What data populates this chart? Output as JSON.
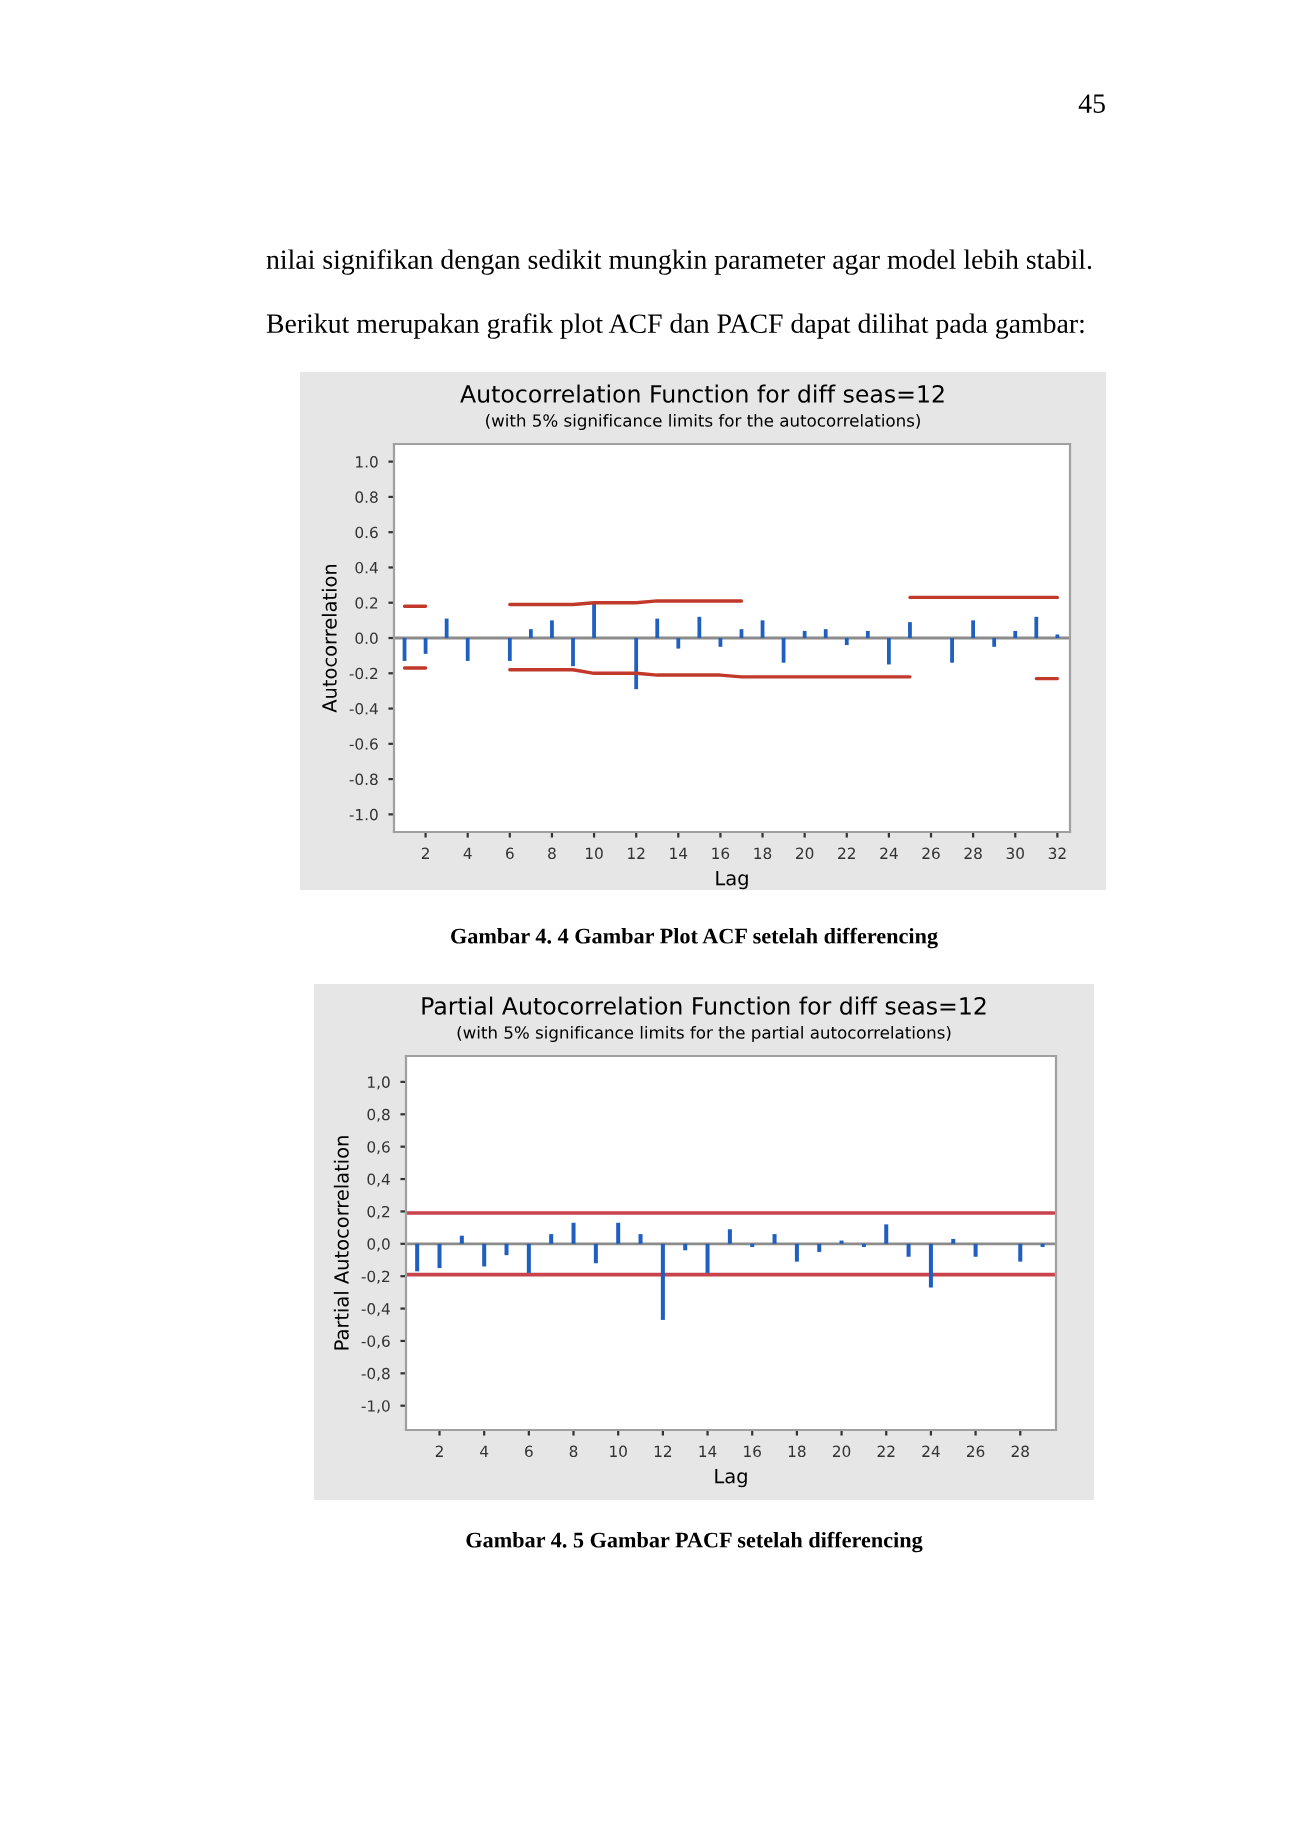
{
  "chart_data": [
    {
      "type": "bar",
      "title": "Autocorrelation Function for diff seas=12",
      "subtitle": "(with 5% significance limits for the autocorrelations)",
      "xlabel": "Lag",
      "ylabel": "Autocorrelation",
      "annotations": [
        "45",
        "nilai signifikan dengan sedikit mungkin parameter agar model lebih stabil.",
        "Berikut merupakan grafik plot ACF dan PACF dapat dilihat pada gambar:",
        "Gambar 4. 4 Gambar Plot ACF setelah differencing"
      ],
      "x": [
        1,
        2,
        3,
        4,
        5,
        6,
        7,
        8,
        9,
        10,
        11,
        12,
        13,
        14,
        15,
        16,
        17,
        18,
        19,
        20,
        21,
        22,
        23,
        24,
        25,
        26,
        27,
        28,
        29,
        30,
        31,
        32
      ],
      "series": [
        {
          "color": "#1f5fbf",
          "values": [
            -0.13,
            -0.09,
            0.11,
            -0.13,
            0,
            -0.13,
            0.05,
            0.1,
            -0.16,
            0.2,
            0,
            -0.29,
            0.11,
            -0.06,
            0.12,
            -0.05,
            0.05,
            0.1,
            -0.14,
            0.04,
            0.05,
            -0.04,
            0.04,
            -0.15,
            0.09,
            0,
            -0.14,
            0.1,
            -0.05,
            0.04,
            0.12,
            0.02
          ]
        },
        {
          "type": "line",
          "color": "#c0392b",
          "values": [
            0.18,
            0.18,
            null,
            null,
            null,
            0.19,
            0.19,
            0.19,
            0.19,
            0.2,
            0.2,
            0.2,
            0.21,
            0.21,
            0.21,
            0.21,
            0.21,
            null,
            null,
            null,
            null,
            null,
            null,
            null,
            0.23,
            0.23,
            0.23,
            0.23,
            0.23,
            0.23,
            0.23,
            0.23
          ]
        },
        {
          "type": "line",
          "color": "#c0392b",
          "values": [
            -0.17,
            -0.17,
            null,
            null,
            null,
            -0.18,
            -0.18,
            -0.18,
            -0.18,
            -0.2,
            -0.2,
            -0.2,
            -0.21,
            -0.21,
            -0.21,
            -0.21,
            -0.22,
            -0.22,
            -0.22,
            -0.22,
            -0.22,
            -0.22,
            -0.22,
            -0.22,
            -0.22,
            null,
            null,
            null,
            null,
            null,
            -0.23,
            -0.23
          ]
        }
      ],
      "ref_lines": [
        {
          "axis": "y",
          "value": 0,
          "label": null,
          "color": "#8c8c8c"
        }
      ],
      "xlim": [
        0.5,
        32.6
      ],
      "xticks": [
        2,
        4,
        6,
        8,
        10,
        12,
        14,
        16,
        18,
        20,
        22,
        24,
        26,
        28,
        30,
        32
      ],
      "ylim": [
        -1.1,
        1.1
      ],
      "yticks": [
        {
          "value": -1.0,
          "label": "-1.0"
        },
        -0.8,
        -0.6,
        -0.4,
        -0.2,
        {
          "value": 0.0,
          "label": "0.0"
        },
        0.2,
        0.4,
        0.6,
        0.8,
        {
          "value": 1.0,
          "label": "1.0"
        }
      ],
      "grid": false,
      "legend": false
    },
    {
      "type": "bar",
      "title": "Partial Autocorrelation Function for diff seas=12",
      "subtitle": "(with 5% significance limits for the partial autocorrelations)",
      "xlabel": "Lag",
      "ylabel": "Partial Autocorrelation",
      "annotations": [
        "Gambar 4. 5 Gambar PACF setelah differencing"
      ],
      "x": [
        1,
        2,
        3,
        4,
        5,
        6,
        7,
        8,
        9,
        10,
        11,
        12,
        13,
        14,
        15,
        16,
        17,
        18,
        19,
        20,
        21,
        22,
        23,
        24,
        25,
        26,
        27,
        28,
        29
      ],
      "series": [
        {
          "color": "#1f5fbf",
          "values": [
            -0.17,
            -0.15,
            0.05,
            -0.14,
            -0.07,
            -0.18,
            0.06,
            0.13,
            -0.12,
            0.13,
            0.06,
            -0.47,
            -0.04,
            -0.18,
            0.09,
            -0.02,
            0.06,
            -0.11,
            -0.05,
            0.02,
            -0.02,
            0.12,
            -0.08,
            -0.27,
            0.03,
            -0.08,
            0,
            -0.11,
            -0.02
          ]
        }
      ],
      "ref_lines": [
        {
          "axis": "y",
          "value": 0,
          "label": null,
          "color": "#8c8c8c"
        },
        {
          "axis": "y",
          "value": 0.19,
          "label": null,
          "color": "#c8434b"
        },
        {
          "axis": "y",
          "value": -0.19,
          "label": null,
          "color": "#c8434b"
        }
      ],
      "xlim": [
        0.5,
        29.6
      ],
      "xticks": [
        2,
        4,
        6,
        8,
        10,
        12,
        14,
        16,
        18,
        20,
        22,
        24,
        26,
        28
      ],
      "ylim": [
        -1.15,
        1.16
      ],
      "yticks": [
        {
          "value": -1.0,
          "label": "-1,0"
        },
        {
          "value": -0.8,
          "label": "-0,8"
        },
        {
          "value": -0.6,
          "label": "-0,6"
        },
        {
          "value": -0.4,
          "label": "-0,4"
        },
        {
          "value": -0.2,
          "label": "-0,2"
        },
        {
          "value": 0.0,
          "label": "0,0"
        },
        {
          "value": 0.2,
          "label": "0,2"
        },
        {
          "value": 0.4,
          "label": "0,4"
        },
        {
          "value": 0.6,
          "label": "0,6"
        },
        {
          "value": 0.8,
          "label": "0,8"
        },
        {
          "value": 1.0,
          "label": "1,0"
        }
      ],
      "grid": false,
      "legend": false
    }
  ]
}
